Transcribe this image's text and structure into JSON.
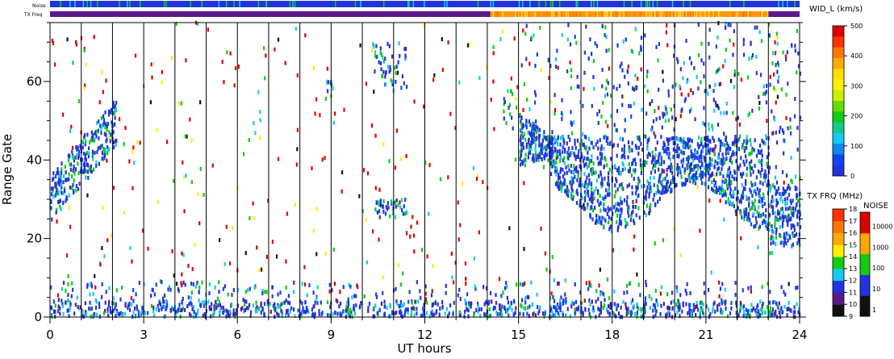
{
  "chart_data": {
    "type": "scatter",
    "xlabel": "UT hours",
    "ylabel": "Range Gate",
    "xlim": [
      0,
      24
    ],
    "ylim": [
      0,
      75
    ],
    "xticks": [
      "0",
      "3",
      "6",
      "9",
      "12",
      "15",
      "18",
      "21",
      "24"
    ],
    "xtick_values": [
      0,
      3,
      6,
      9,
      12,
      15,
      18,
      21,
      24
    ],
    "yticks": [
      "0",
      "20",
      "40",
      "60"
    ],
    "ytick_values": [
      0,
      20,
      40,
      60
    ],
    "grid": "vertical lines every UT hour",
    "top_bars": {
      "noise_label": "Noise",
      "txfreq_label": "TX Freq",
      "txfreq_segments": [
        {
          "from": 0,
          "to": 14.1,
          "color": "#5a1a8a"
        },
        {
          "from": 14.1,
          "to": 23,
          "color": "#ff9900"
        },
        {
          "from": 23,
          "to": 24,
          "color": "#5a1a8a"
        }
      ]
    },
    "width_colorbar": {
      "title": "WID_L (km/s)",
      "ticks": [
        "0",
        "100",
        "200",
        "300",
        "400",
        "500"
      ],
      "tick_values": [
        0,
        100,
        200,
        300,
        400,
        500
      ]
    },
    "txfreq_colorbar": {
      "title": "TX FRQ (MHz)",
      "ticks": [
        "9",
        "10",
        "11",
        "12",
        "13",
        "14",
        "15",
        "16",
        "17",
        "18"
      ],
      "colors": [
        "#111111",
        "#5a1a8a",
        "#2233dd",
        "#11ccee",
        "#11cc11",
        "#ffee00",
        "#ffaa00",
        "#ff7700",
        "#ff3300",
        "#dd0000"
      ]
    },
    "noise_colorbar": {
      "title": "NOISE",
      "ticks": [
        "1",
        "10",
        "100",
        "1000",
        "10000"
      ],
      "colors": [
        "#111111",
        "#2233dd",
        "#11cc11",
        "#ffaa00",
        "#dd0000"
      ]
    },
    "features": [
      {
        "name": "rising echo band",
        "x_from": 0,
        "x_to": 2.1,
        "y_from": 30,
        "y_to": 53
      },
      {
        "name": "patch near 11 UT",
        "x": 10.9,
        "y_from": 25,
        "y_to": 30
      },
      {
        "name": "patch near 11 UT high",
        "x": 10.9,
        "y_from": 60,
        "y_to": 70
      },
      {
        "name": "dense scatter",
        "x_from": 15,
        "x_to": 23,
        "y_from": 24,
        "y_to": 52
      },
      {
        "name": "late band",
        "x_from": 23,
        "x_to": 24,
        "y_from": 18,
        "y_to": 33
      },
      {
        "name": "ground scatter near gate 0",
        "x_from": 0,
        "x_to": 24,
        "y_from": 0,
        "y_to": 8
      }
    ]
  }
}
